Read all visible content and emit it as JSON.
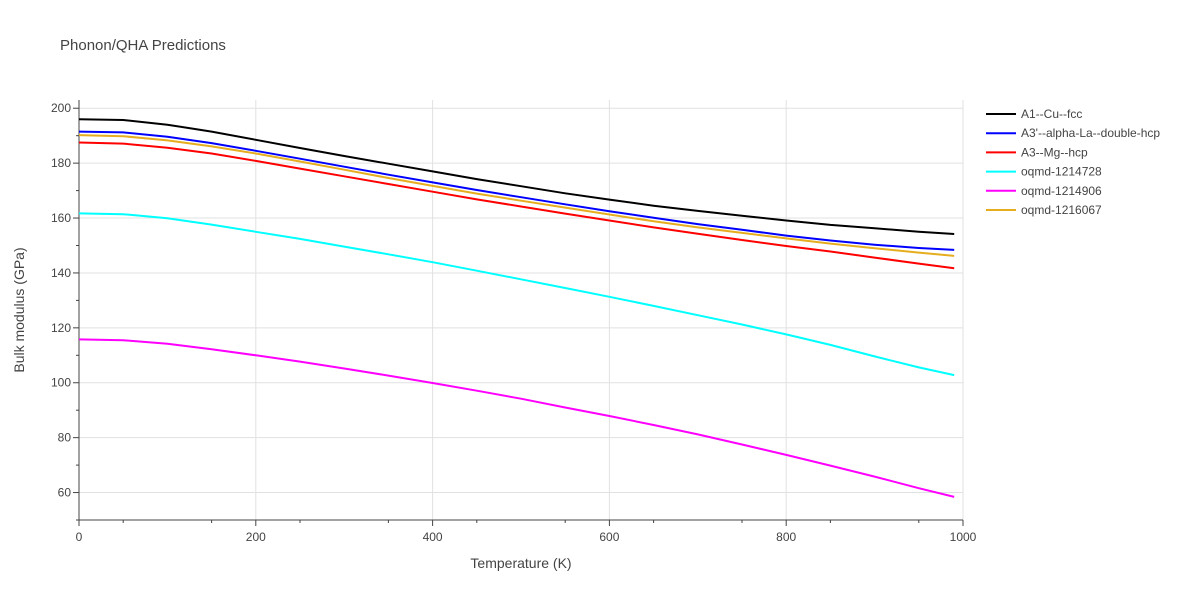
{
  "chart_data": {
    "type": "line",
    "title": "Phonon/QHA Predictions",
    "xlabel": "Temperature (K)",
    "ylabel": "Bulk modulus (GPa)",
    "xlim": [
      0,
      1000
    ],
    "ylim": [
      50,
      203
    ],
    "xticks": [
      0,
      200,
      400,
      600,
      800,
      1000
    ],
    "yticks": [
      60,
      80,
      100,
      120,
      140,
      160,
      180,
      200
    ],
    "grid": true,
    "legend_position": "top-right",
    "series": [
      {
        "name": "A1--Cu--fcc",
        "color": "#000000",
        "x": [
          0,
          50,
          100,
          150,
          200,
          250,
          300,
          350,
          400,
          450,
          500,
          550,
          600,
          650,
          700,
          750,
          800,
          850,
          900,
          950,
          990
        ],
        "y": [
          196,
          195.7,
          194,
          191.5,
          188.5,
          185.5,
          182.6,
          179.8,
          177,
          174.2,
          171.6,
          169,
          166.7,
          164.5,
          162.6,
          160.8,
          159.1,
          157.5,
          156.3,
          155,
          154.2
        ]
      },
      {
        "name": "A3'--alpha-La--double-hcp",
        "color": "#0000ff",
        "x": [
          0,
          50,
          100,
          150,
          200,
          250,
          300,
          350,
          400,
          450,
          500,
          550,
          600,
          650,
          700,
          750,
          800,
          850,
          900,
          950,
          990
        ],
        "y": [
          191.5,
          191.2,
          189.6,
          187.3,
          184.5,
          181.6,
          178.7,
          175.8,
          173,
          170.2,
          167.6,
          165,
          162.5,
          160.1,
          157.8,
          155.7,
          153.6,
          151.8,
          150.3,
          149.1,
          148.4
        ]
      },
      {
        "name": "A3--Mg--hcp",
        "color": "#ff0000",
        "x": [
          0,
          50,
          100,
          150,
          200,
          250,
          300,
          350,
          400,
          450,
          500,
          550,
          600,
          650,
          700,
          750,
          800,
          850,
          900,
          950,
          990
        ],
        "y": [
          187.5,
          187.1,
          185.6,
          183.5,
          180.8,
          178,
          175.2,
          172.4,
          169.6,
          166.8,
          164.2,
          161.6,
          159.1,
          156.6,
          154.3,
          152,
          149.8,
          147.8,
          145.6,
          143.4,
          141.7
        ]
      },
      {
        "name": "oqmd-1214728",
        "color": "#00ffff",
        "x": [
          0,
          50,
          100,
          150,
          200,
          250,
          300,
          350,
          400,
          450,
          500,
          550,
          600,
          650,
          700,
          750,
          800,
          850,
          900,
          950,
          990
        ],
        "y": [
          161.7,
          161.4,
          159.9,
          157.6,
          155,
          152.4,
          149.6,
          146.8,
          143.9,
          140.8,
          137.7,
          134.5,
          131.3,
          128,
          124.6,
          121.2,
          117.6,
          113.8,
          109.6,
          105.6,
          102.8
        ]
      },
      {
        "name": "oqmd-1214906",
        "color": "#ff00ff",
        "x": [
          0,
          50,
          100,
          150,
          200,
          250,
          300,
          350,
          400,
          450,
          500,
          550,
          600,
          650,
          700,
          750,
          800,
          850,
          900,
          950,
          990
        ],
        "y": [
          115.8,
          115.5,
          114.2,
          112.2,
          110,
          107.7,
          105.2,
          102.6,
          99.9,
          97.1,
          94.2,
          91,
          87.9,
          84.6,
          81.2,
          77.5,
          73.7,
          69.8,
          65.8,
          61.6,
          58.4
        ]
      },
      {
        "name": "oqmd-1216067",
        "color": "#e6ad1e",
        "x": [
          0,
          50,
          100,
          150,
          200,
          250,
          300,
          350,
          400,
          450,
          500,
          550,
          600,
          650,
          700,
          750,
          800,
          850,
          900,
          950,
          990
        ],
        "y": [
          190.2,
          189.8,
          188.3,
          186.1,
          183.5,
          180.6,
          177.6,
          174.6,
          171.7,
          168.9,
          166.3,
          163.8,
          161.3,
          158.8,
          156.6,
          154.6,
          152.6,
          150.7,
          149,
          147.4,
          146.2
        ]
      }
    ]
  }
}
